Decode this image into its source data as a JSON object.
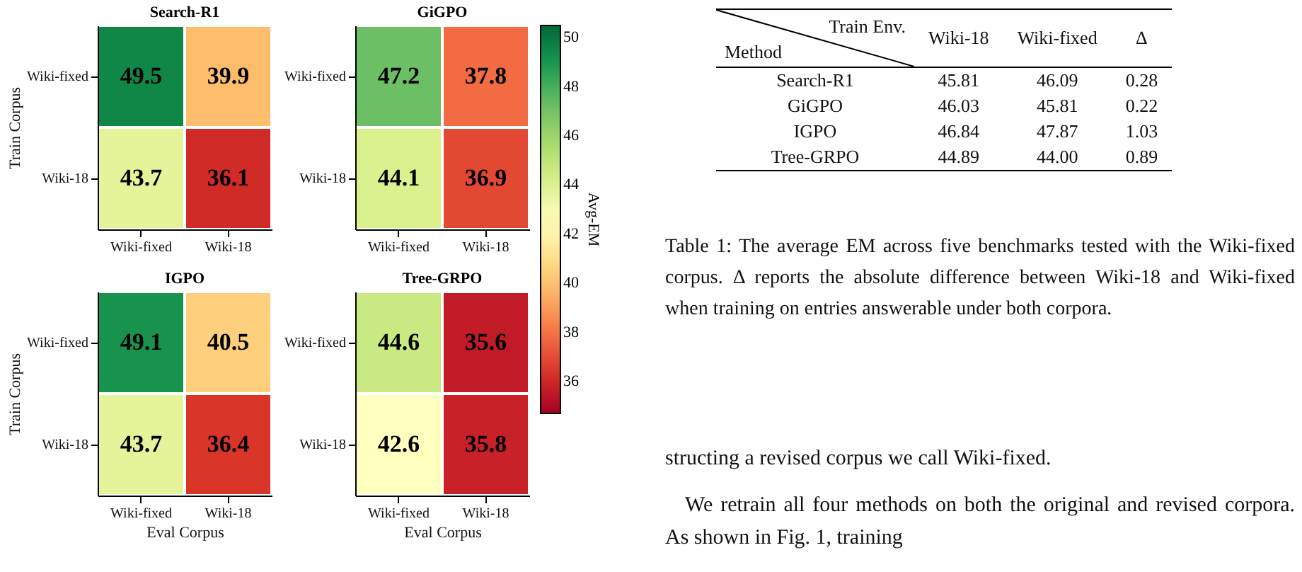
{
  "chart_data": [
    {
      "type": "heatmap",
      "title": "Search-R1",
      "ylabel": "Train Corpus",
      "clabel": "Avg-EM",
      "categories": [
        "Wiki-fixed",
        "Wiki-18"
      ],
      "y_categories": [
        "Wiki-fixed",
        "Wiki-18"
      ],
      "cells": [
        [
          49.5,
          39.9
        ],
        [
          43.7,
          36.1
        ]
      ],
      "clim": [
        34.7,
        50.5
      ],
      "cticks": [
        36,
        38,
        40,
        42,
        44,
        46,
        48,
        50
      ],
      "data_labels": true
    },
    {
      "type": "heatmap",
      "title": "GiGPO",
      "categories": [
        "Wiki-fixed",
        "Wiki-18"
      ],
      "y_categories": [
        "Wiki-fixed",
        "Wiki-18"
      ],
      "cells": [
        [
          47.2,
          37.8
        ],
        [
          44.1,
          36.9
        ]
      ],
      "data_labels": true
    },
    {
      "type": "heatmap",
      "title": "IGPO",
      "xlabel": "Eval Corpus",
      "ylabel": "Train Corpus",
      "categories": [
        "Wiki-fixed",
        "Wiki-18"
      ],
      "y_categories": [
        "Wiki-fixed",
        "Wiki-18"
      ],
      "cells": [
        [
          49.1,
          40.5
        ],
        [
          43.7,
          36.4
        ]
      ],
      "data_labels": true
    },
    {
      "type": "heatmap",
      "title": "Tree-GRPO",
      "xlabel": "Eval Corpus",
      "categories": [
        "Wiki-fixed",
        "Wiki-18"
      ],
      "y_categories": [
        "Wiki-fixed",
        "Wiki-18"
      ],
      "cells": [
        [
          44.6,
          35.6
        ],
        [
          42.6,
          35.8
        ]
      ],
      "data_labels": true
    },
    {
      "type": "other",
      "annotations": [
        "Train Env.",
        "Method",
        "Wiki-18",
        "Wiki-fixed",
        "Δ",
        "Search-R1",
        "45.81",
        "46.09",
        "0.28",
        "GiGPO",
        "46.03",
        "45.81",
        "0.22",
        "IGPO",
        "46.84",
        "47.87",
        "1.03",
        "Tree-GRPO",
        "44.89",
        "44.00",
        "0.89",
        "Table 1: The average EM across five benchmarks tested with the Wiki-fixed corpus. Δ reports the absolute difference between Wiki-18 and Wiki-fixed when training on entries answerable under both corpora.",
        "structing a revised corpus we call Wiki-fixed.",
        "We retrain all four methods on both the original and revised corpora. As shown in Fig. 1, training"
      ]
    }
  ]
}
